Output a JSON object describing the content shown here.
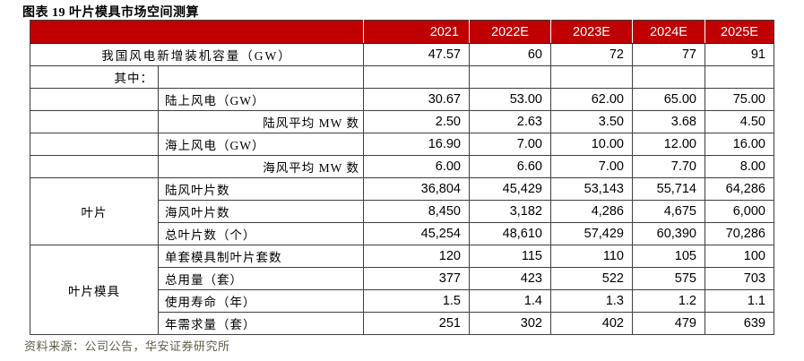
{
  "title": "图表 19 叶片模具市场空间测算",
  "source": "资料来源：公司公告，华安证券研究所",
  "colors": {
    "header_bg": "#c00000",
    "header_text": "#ffffff",
    "border": "#3f3f3f",
    "source_text": "#615d4a"
  },
  "chart_data": {
    "type": "table",
    "columns": [
      "2021",
      "2022E",
      "2023E",
      "2024E",
      "2025E"
    ],
    "rows": [
      {
        "span": 2,
        "label": "我国风电新增装机容量（GW）",
        "label_align": "center",
        "values": [
          "47.57",
          "60",
          "72",
          "77",
          "91"
        ]
      },
      {
        "group": {
          "text": "其中：",
          "rows": 1,
          "align": "right"
        },
        "label": "",
        "label_align": "left",
        "values": [
          "",
          "",
          "",
          "",
          ""
        ]
      },
      {
        "group": {
          "text": "",
          "rows": 1,
          "align": "center"
        },
        "label": "陆上风电（GW）",
        "label_align": "left",
        "values": [
          "30.67",
          "53.00",
          "62.00",
          "65.00",
          "75.00"
        ]
      },
      {
        "group": {
          "text": "",
          "rows": 1,
          "align": "center"
        },
        "label": "陆风平均 MW 数",
        "label_align": "right",
        "values": [
          "2.50",
          "2.63",
          "3.50",
          "3.68",
          "4.50"
        ]
      },
      {
        "group": {
          "text": "",
          "rows": 1,
          "align": "center"
        },
        "label": "海上风电（GW）",
        "label_align": "left",
        "values": [
          "16.90",
          "7.00",
          "10.00",
          "12.00",
          "16.00"
        ]
      },
      {
        "group": {
          "text": "",
          "rows": 1,
          "align": "center"
        },
        "label": "海风平均 MW 数",
        "label_align": "right",
        "values": [
          "6.00",
          "6.60",
          "7.00",
          "7.70",
          "8.00"
        ]
      },
      {
        "group": {
          "text": "叶片",
          "rows": 3,
          "align": "center"
        },
        "label": "陆风叶片数",
        "label_align": "left",
        "values": [
          "36,804",
          "45,429",
          "53,143",
          "55,714",
          "64,286"
        ]
      },
      {
        "label": "海风叶片数",
        "label_align": "left",
        "values": [
          "8,450",
          "3,182",
          "4,286",
          "4,675",
          "6,000"
        ]
      },
      {
        "label": "总叶片数（个）",
        "label_align": "left",
        "values": [
          "45,254",
          "48,610",
          "57,429",
          "60,390",
          "70,286"
        ]
      },
      {
        "group": {
          "text": "叶片模具",
          "rows": 4,
          "align": "center"
        },
        "label": "单套模具制叶片套数",
        "label_align": "left",
        "values": [
          "120",
          "115",
          "110",
          "105",
          "100"
        ]
      },
      {
        "label": "总用量（套）",
        "label_align": "left",
        "values": [
          "377",
          "423",
          "522",
          "575",
          "703"
        ]
      },
      {
        "label": "使用寿命（年）",
        "label_align": "left",
        "values": [
          "1.5",
          "1.4",
          "1.3",
          "1.2",
          "1.1"
        ]
      },
      {
        "label": "年需求量（套）",
        "label_align": "left",
        "values": [
          "251",
          "302",
          "402",
          "479",
          "639"
        ]
      }
    ]
  }
}
